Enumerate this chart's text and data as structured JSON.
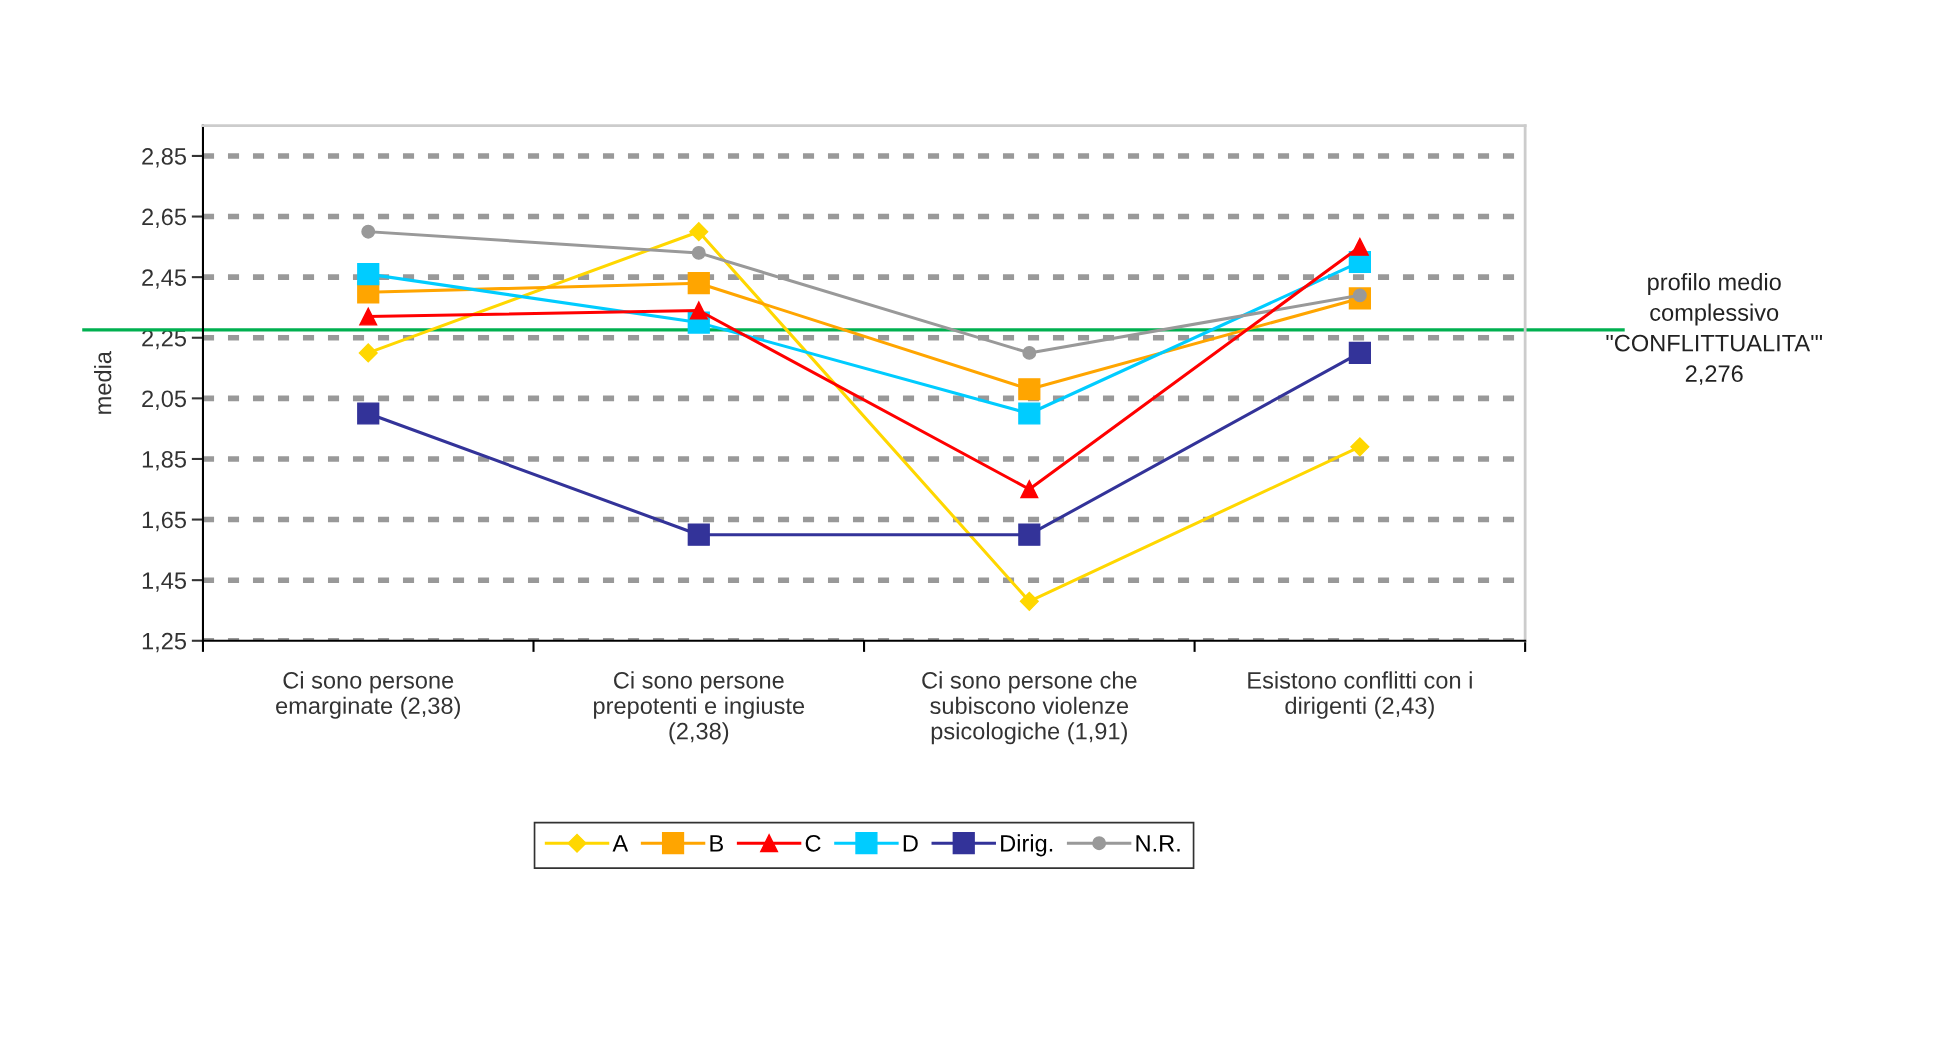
{
  "chart_data": {
    "type": "line",
    "ylabel": "media",
    "categories": [
      "Ci sono persone\nemarginate (2,38)",
      "Ci sono persone\nprepotenti e ingiuste\n(2,38)",
      "Ci sono persone che\nsubiscono violenze\npsicologiche (1,91)",
      "Esistono conflitti con i\ndirigenti (2,43)"
    ],
    "series": [
      {
        "name": "A",
        "color": "#ffd700",
        "marker": "diamond",
        "values": [
          2.2,
          2.6,
          1.38,
          1.89
        ]
      },
      {
        "name": "B",
        "color": "#ffa500",
        "marker": "square",
        "values": [
          2.4,
          2.43,
          2.08,
          2.38
        ]
      },
      {
        "name": "C",
        "color": "#ff0000",
        "marker": "triangle",
        "values": [
          2.32,
          2.34,
          1.75,
          2.55
        ]
      },
      {
        "name": "D",
        "color": "#00ccff",
        "marker": "square",
        "values": [
          2.46,
          2.3,
          2.0,
          2.5
        ]
      },
      {
        "name": "Dirig.",
        "color": "#333399",
        "marker": "square",
        "values": [
          2.0,
          1.6,
          1.6,
          2.2
        ]
      },
      {
        "name": "N.R.",
        "color": "#999999",
        "marker": "circle",
        "values": [
          2.6,
          2.53,
          2.2,
          2.39
        ]
      }
    ],
    "ylim": [
      1.25,
      2.95
    ],
    "yticks": [
      {
        "value": 1.25,
        "label": "1,25"
      },
      {
        "value": 1.45,
        "label": "1,45"
      },
      {
        "value": 1.65,
        "label": "1,65"
      },
      {
        "value": 1.85,
        "label": "1,85"
      },
      {
        "value": 2.05,
        "label": "2,05"
      },
      {
        "value": 2.25,
        "label": "2,25"
      },
      {
        "value": 2.45,
        "label": "2,45"
      },
      {
        "value": 2.65,
        "label": "2,65"
      },
      {
        "value": 2.85,
        "label": "2,85"
      }
    ],
    "ref_lines": [
      {
        "axis": "y",
        "value": 2.276,
        "label": "profilo medio\ncomplessivo\n\"CONFLITTUALITA'\"\n2,276",
        "color": "#00b050",
        "line_style": "solid"
      }
    ],
    "grid": "y",
    "line_style": "solid",
    "legend": "bottom"
  }
}
